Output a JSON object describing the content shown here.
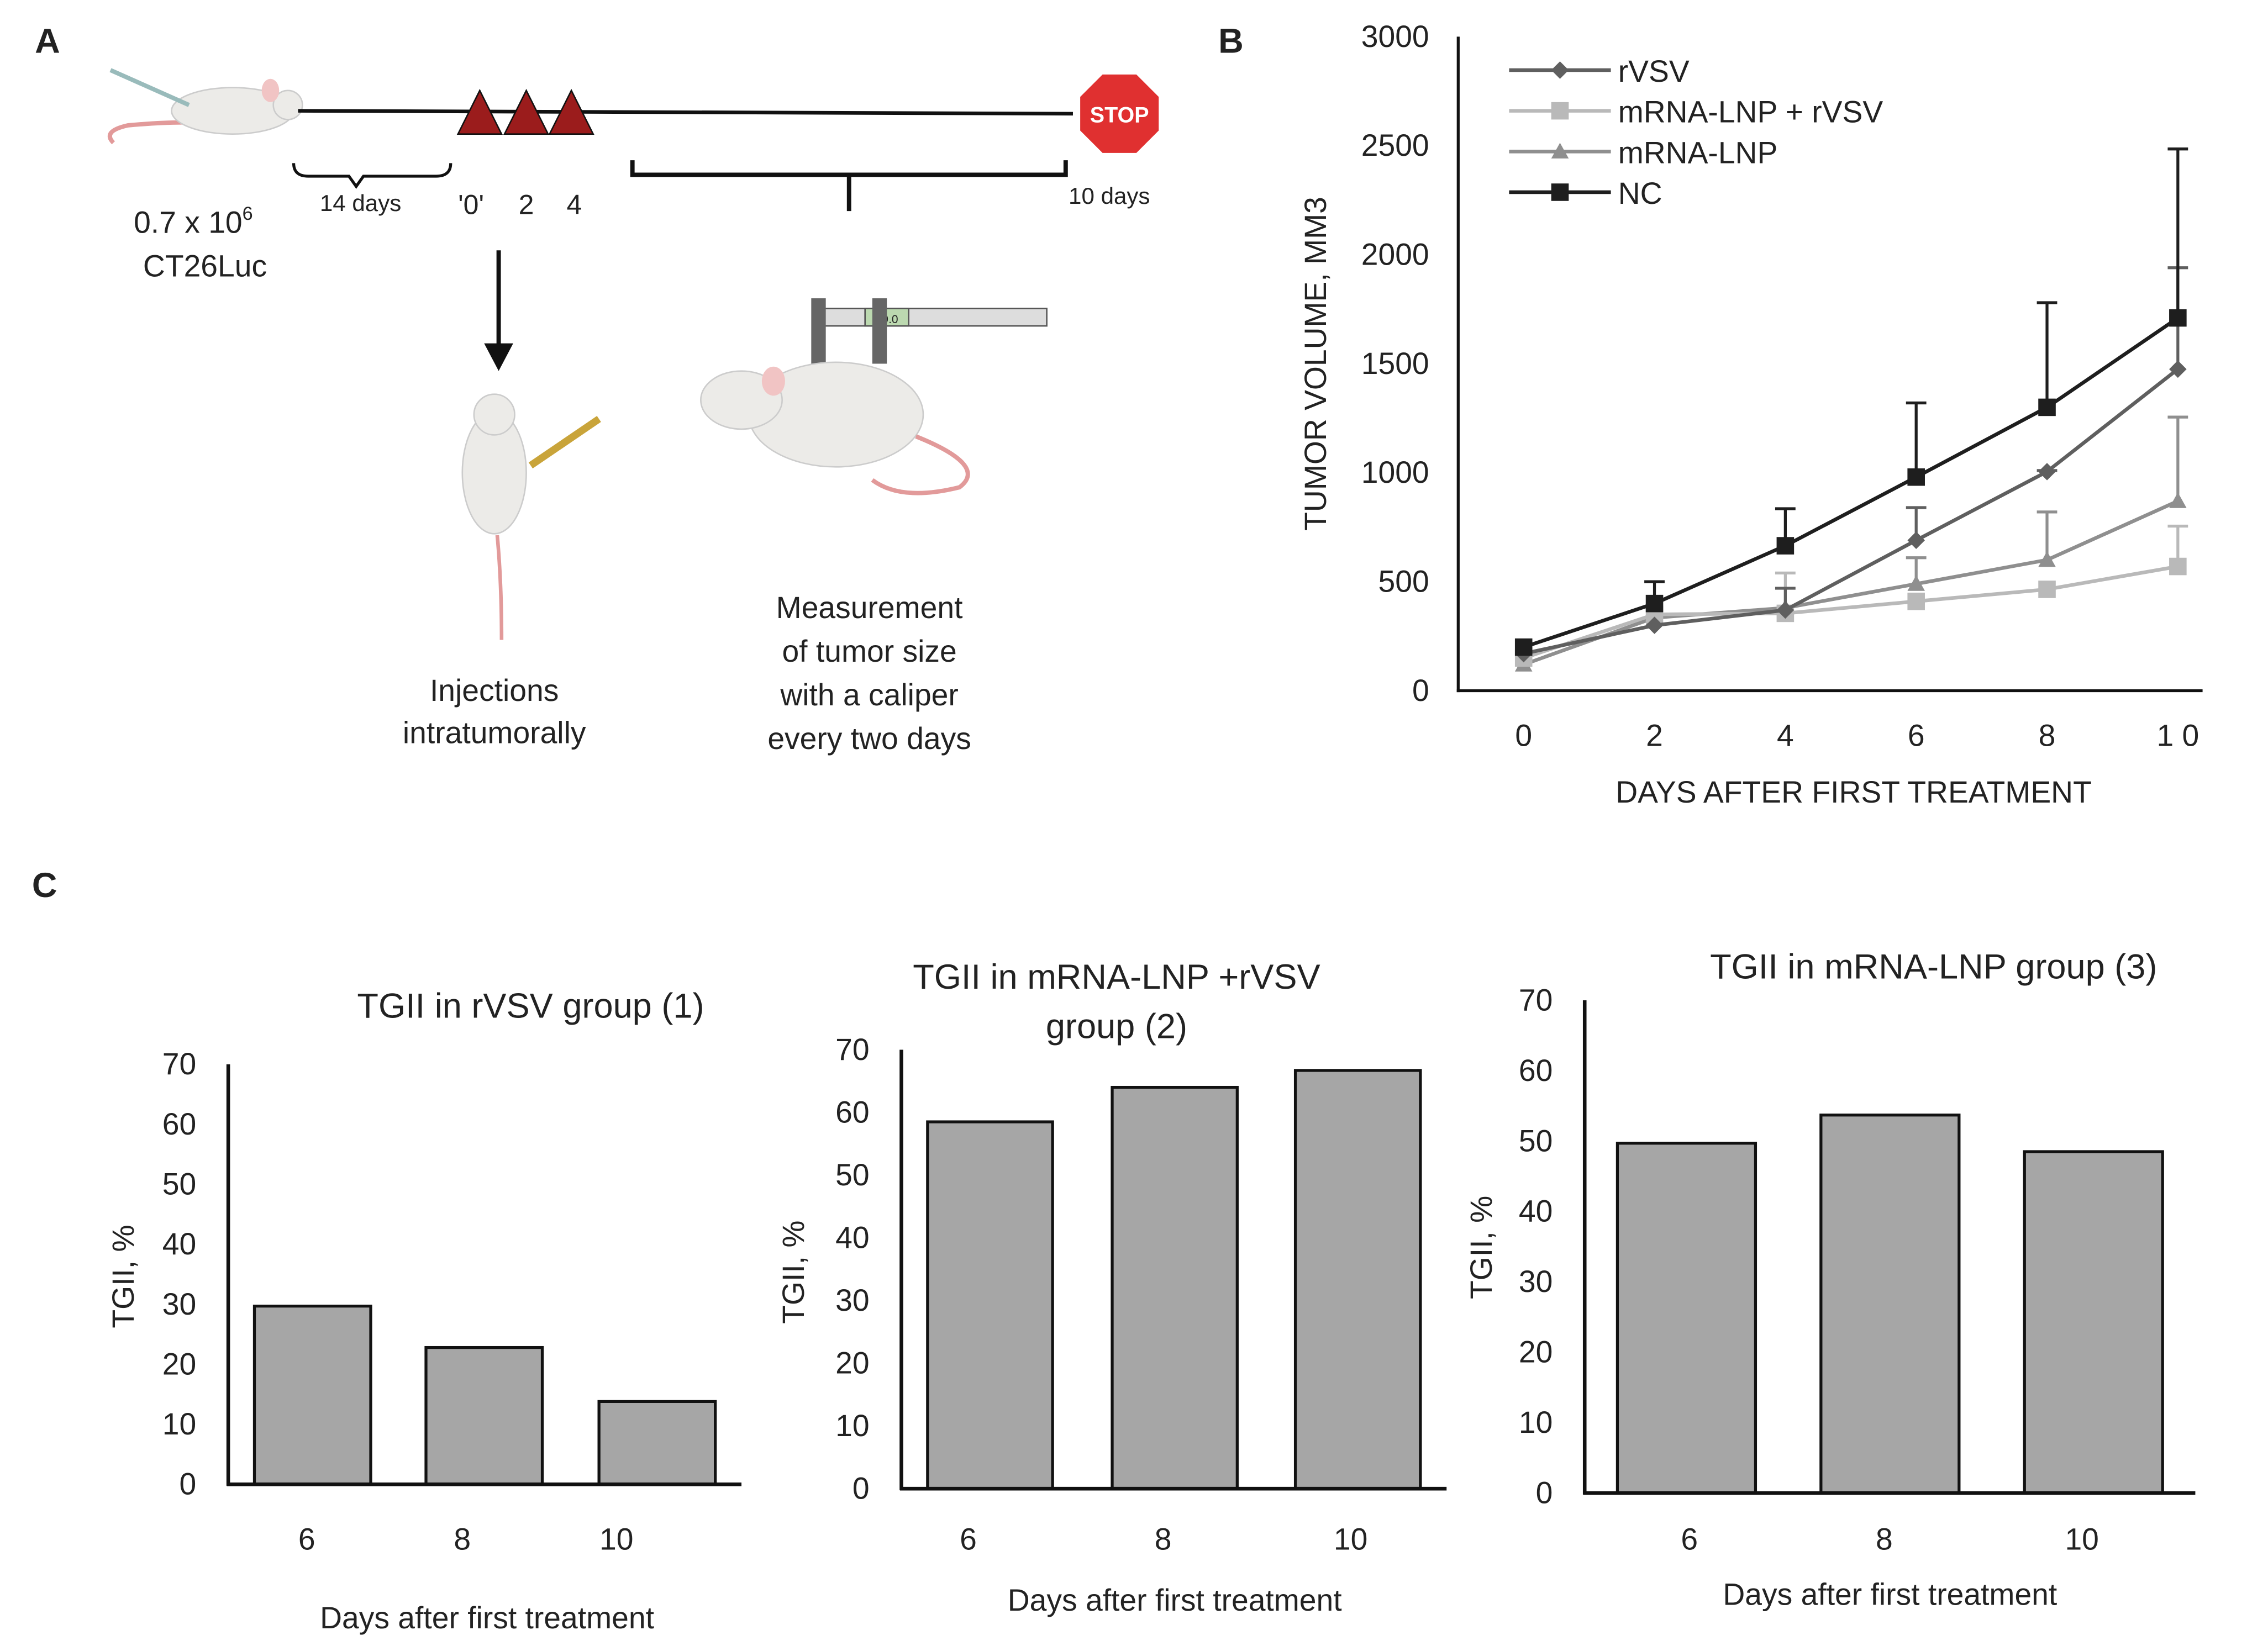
{
  "panel_labels": {
    "a": "A",
    "b": "B",
    "c": "C"
  },
  "panel_a": {
    "cells_line1": "0.7 x 10",
    "cells_exp": "6",
    "cells_line2": "CT26Luc",
    "interval1": "14 days",
    "doses": [
      "'0'",
      "2",
      "4"
    ],
    "interval2": "10 days",
    "stop_sign": "STOP",
    "injection_caption": [
      "Injections",
      "intratumorally"
    ],
    "measurement_caption": [
      "Measurement",
      "of tumor size",
      "with a caliper",
      "every  two days"
    ],
    "caliper_readout": "19.0",
    "colors": {
      "dose_marker": "#9b1c1c",
      "stop": "#e03030"
    }
  },
  "chart_data": [
    {
      "type": "line",
      "panel": "B",
      "xlabel": "DAYS AFTER FIRST TREATMENT",
      "ylabel": "TUMOR VOLUME, MM3",
      "x": [
        0,
        2,
        4,
        6,
        8,
        10
      ],
      "x_tick_labels": [
        "0",
        "2",
        "4",
        "6",
        "8",
        "1 0"
      ],
      "ylim": [
        0,
        3000
      ],
      "y_ticks": [
        0,
        500,
        1000,
        1500,
        2000,
        2500,
        3000
      ],
      "grid": false,
      "legend": "top-left",
      "series": [
        {
          "name": "rVSV",
          "marker": "diamond",
          "color": "#5f5f5f",
          "values": [
            170,
            300,
            370,
            690,
            1005,
            1475
          ],
          "error_upper": [
            null,
            null,
            470,
            840,
            1010,
            1940
          ]
        },
        {
          "name": "mRNA-LNP + rVSV",
          "marker": "square",
          "color": "#b9b9b9",
          "values": [
            150,
            350,
            355,
            410,
            465,
            570
          ],
          "error_upper": [
            null,
            null,
            540,
            null,
            null,
            755
          ]
        },
        {
          "name": "mRNA-LNP",
          "marker": "triangle",
          "color": "#8f8f8f",
          "values": [
            120,
            335,
            380,
            490,
            600,
            870
          ],
          "error_upper": [
            null,
            null,
            null,
            610,
            820,
            1255
          ]
        },
        {
          "name": "NC",
          "marker": "square",
          "color": "#1e1e1e",
          "values": [
            200,
            400,
            665,
            980,
            1300,
            1710
          ],
          "error_upper": [
            null,
            500,
            835,
            1320,
            1780,
            2485
          ]
        }
      ]
    },
    {
      "type": "bar",
      "panel": "C",
      "title": "TGII in rVSV group (1)",
      "xlabel": "Days after first treatment",
      "ylabel": "TGII, %",
      "categories": [
        "6",
        "8",
        "10"
      ],
      "values": [
        29.7,
        22.8,
        13.8
      ],
      "ylim": [
        0,
        70
      ],
      "y_ticks": [
        0,
        10,
        20,
        30,
        40,
        50,
        60,
        70
      ],
      "bar_color": "#a6a6a6"
    },
    {
      "type": "bar",
      "panel": "C",
      "title": "TGII in mRNA-LNP +rVSV",
      "title_line2": "group (2)",
      "xlabel": "Days after first treatment",
      "ylabel": "TGII, %",
      "categories": [
        "6",
        "8",
        "10"
      ],
      "values": [
        58.5,
        64.0,
        66.7
      ],
      "ylim": [
        0,
        70
      ],
      "y_ticks": [
        0,
        10,
        20,
        30,
        40,
        50,
        60,
        70
      ],
      "bar_color": "#a6a6a6"
    },
    {
      "type": "bar",
      "panel": "C",
      "title": "TGII in mRNA-LNP group (3)",
      "xlabel": "Days after first treatment",
      "ylabel": "TGII, %",
      "categories": [
        "6",
        "8",
        "10"
      ],
      "values": [
        49.7,
        53.7,
        48.5
      ],
      "ylim": [
        0,
        70
      ],
      "y_ticks": [
        0,
        10,
        20,
        30,
        40,
        50,
        60,
        70
      ],
      "bar_color": "#a6a6a6"
    }
  ]
}
